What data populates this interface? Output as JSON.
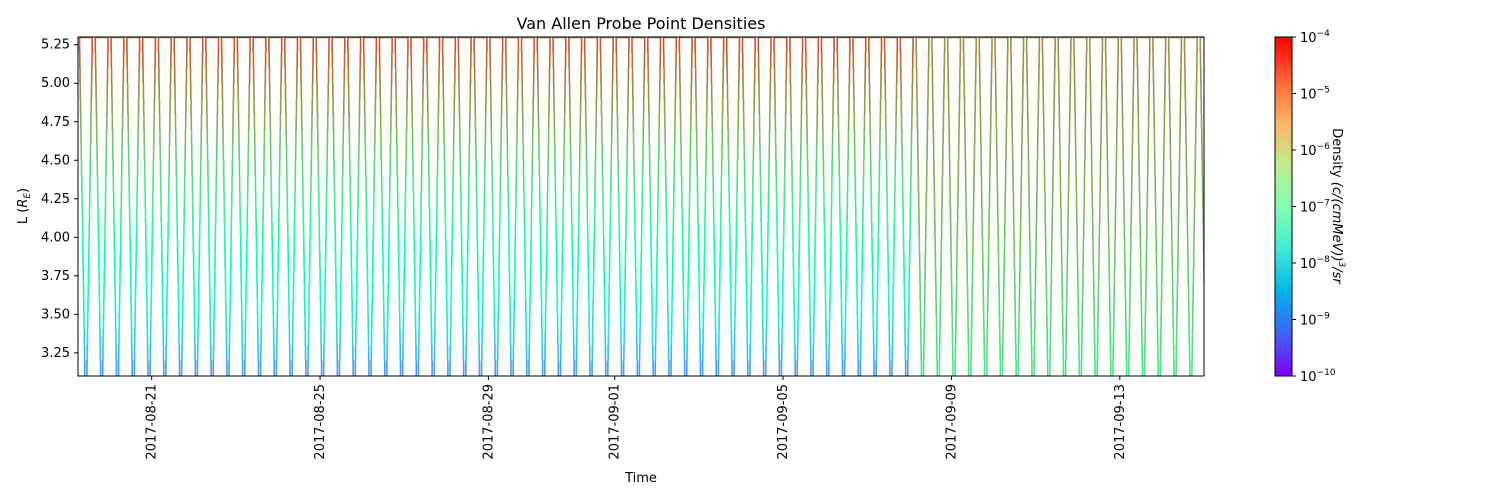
{
  "chart_data": {
    "type": "heatmap",
    "title": "Van Allen Probe Point Densities",
    "xlabel": "Time",
    "ylabel": "L (R_E)",
    "ylabel_main": "L (",
    "ylabel_sub": "E",
    "ylabel_symbol": "R",
    "ylabel_close": ")",
    "x_range": [
      "2017-08-19T06:00",
      "2017-09-15T00:00"
    ],
    "xticks": [
      "2017-08-21",
      "2017-08-25",
      "2017-08-29",
      "2017-09-01",
      "2017-09-05",
      "2017-09-09",
      "2017-09-13"
    ],
    "ylim": [
      3.1,
      5.3
    ],
    "yticks": [
      3.25,
      3.5,
      3.75,
      4.0,
      4.25,
      4.5,
      4.75,
      5.0,
      5.25
    ],
    "ytick_labels": [
      "3.25",
      "3.50",
      "3.75",
      "4.00",
      "4.25",
      "4.50",
      "4.75",
      "5.00",
      "5.25"
    ],
    "orbit_period_hours": 9.0,
    "orbit_count": 72,
    "colorbar": {
      "label": "Density (c/(cmMeV))^3/sr",
      "label_parts": [
        "Density ",
        "(c/(cmMeV))",
        "3",
        "/sr"
      ],
      "scale": "log",
      "range": [
        1e-10,
        0.0001
      ],
      "tick_exponents": [
        -10,
        -9,
        -8,
        -7,
        -6,
        -5,
        -4
      ],
      "tick_base": "10",
      "colormap": "rainbow"
    },
    "density_profile": {
      "note_segments": [
        {
          "from": "2017-08-19",
          "to": "2017-09-08",
          "log10_at_L3.1": -9.0,
          "log10_at_L5.3": -4.6
        },
        {
          "from": "2017-09-08",
          "to": "2017-09-15",
          "log10_at_L3.1": -6.2,
          "log10_at_L5.3": -5.1
        }
      ]
    }
  }
}
